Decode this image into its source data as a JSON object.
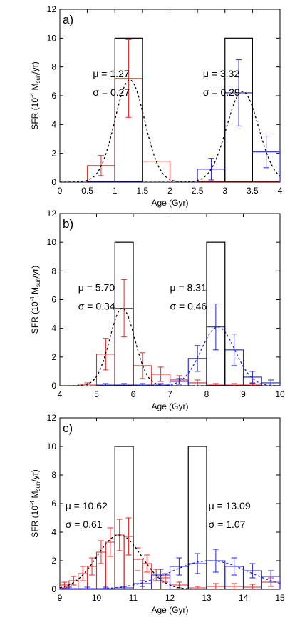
{
  "chart_data": [
    {
      "panel_label": "a)",
      "type": "bar",
      "xlabel": "Age (Gyr)",
      "ylabel_main": "SFR (10",
      "ylabel_exp": "-4",
      "ylabel_unit": " M",
      "ylabel_sub": "sun",
      "ylabel_tail": "/yr)",
      "xlim": [
        0,
        4
      ],
      "ylim": [
        0,
        12
      ],
      "xticks": [
        0,
        0.5,
        1,
        1.5,
        2,
        2.5,
        3,
        3.5,
        4
      ],
      "xtick_labels": [
        "0",
        "0.5",
        "1",
        "1.5",
        "2",
        "2.5",
        "3",
        "3.5",
        "4"
      ],
      "yticks": [
        0,
        2,
        4,
        6,
        8,
        10,
        12
      ],
      "ytick_labels": [
        "0",
        "2",
        "4",
        "6",
        "8",
        "10",
        "12"
      ],
      "input_boxes": [
        {
          "x0": 1.0,
          "x1": 1.5,
          "height": 10
        },
        {
          "x0": 3.0,
          "x1": 3.5,
          "height": 10
        }
      ],
      "series": [
        {
          "color": "#e8262a",
          "bins": [
            {
              "x0": 0.0,
              "x1": 0.5,
              "value": 0.0,
              "err": 0.0
            },
            {
              "x0": 0.5,
              "x1": 1.0,
              "value": 1.15,
              "err": 0.7
            },
            {
              "x0": 1.0,
              "x1": 1.5,
              "value": 7.2,
              "err": 2.7
            },
            {
              "x0": 1.5,
              "x1": 2.0,
              "value": 1.45,
              "err": 0.0
            },
            {
              "x0": 2.0,
              "x1": 2.5,
              "value": 0.0,
              "err": 0.0
            },
            {
              "x0": 2.5,
              "x1": 3.0,
              "value": 0.05,
              "err": 0.0
            },
            {
              "x0": 3.0,
              "x1": 3.5,
              "value": 0.05,
              "err": 0.0
            },
            {
              "x0": 3.5,
              "x1": 4.0,
              "value": 0.05,
              "err": 0.0
            }
          ],
          "fit": {
            "mu": 1.27,
            "sigma": 0.27,
            "amp": 7.1
          }
        },
        {
          "color": "#2323d6",
          "bins": [
            {
              "x0": 0.0,
              "x1": 0.5,
              "value": 0.0,
              "err": 0.0
            },
            {
              "x0": 0.5,
              "x1": 1.0,
              "value": 0.05,
              "err": 0.0
            },
            {
              "x0": 1.0,
              "x1": 1.5,
              "value": 0.05,
              "err": 0.0
            },
            {
              "x0": 1.5,
              "x1": 2.0,
              "value": 0.0,
              "err": 0.0
            },
            {
              "x0": 2.0,
              "x1": 2.5,
              "value": 0.0,
              "err": 0.0
            },
            {
              "x0": 2.5,
              "x1": 3.0,
              "value": 0.9,
              "err": 0.75
            },
            {
              "x0": 3.0,
              "x1": 3.5,
              "value": 6.2,
              "err": 2.3
            },
            {
              "x0": 3.5,
              "x1": 4.0,
              "value": 2.1,
              "err": 1.1
            }
          ],
          "fit": {
            "mu": 3.32,
            "sigma": 0.29,
            "amp": 6.3
          }
        }
      ],
      "annotations": [
        {
          "text": "μ = 1.27",
          "x": 0.6,
          "y": 7.3
        },
        {
          "text": "σ = 0.27",
          "x": 0.6,
          "y": 6.0
        },
        {
          "text": "μ = 3.32",
          "x": 2.6,
          "y": 7.3
        },
        {
          "text": "σ = 0.29",
          "x": 2.6,
          "y": 6.0
        }
      ]
    },
    {
      "panel_label": "b)",
      "type": "bar",
      "xlabel": "Age (Gyr)",
      "ylabel_main": "SFR (10",
      "ylabel_exp": "-4",
      "ylabel_unit": " M",
      "ylabel_sub": "sun",
      "ylabel_tail": "/yr)",
      "xlim": [
        4,
        10
      ],
      "ylim": [
        0,
        12
      ],
      "xticks": [
        4,
        5,
        6,
        7,
        8,
        9,
        10
      ],
      "xtick_labels": [
        "4",
        "5",
        "6",
        "7",
        "8",
        "9",
        "10"
      ],
      "yticks": [
        0,
        2,
        4,
        6,
        8,
        10,
        12
      ],
      "ytick_labels": [
        "0",
        "2",
        "4",
        "6",
        "8",
        "10",
        "12"
      ],
      "input_boxes": [
        {
          "x0": 5.5,
          "x1": 6.0,
          "height": 10
        },
        {
          "x0": 8.0,
          "x1": 8.5,
          "height": 10
        }
      ],
      "series": [
        {
          "color": "#e8262a",
          "bins": [
            {
              "x0": 4.5,
              "x1": 5.0,
              "value": 0.1,
              "err": 0.1
            },
            {
              "x0": 5.0,
              "x1": 5.5,
              "value": 2.2,
              "err": 1.1
            },
            {
              "x0": 5.5,
              "x1": 6.0,
              "value": 5.4,
              "err": 2.0
            },
            {
              "x0": 6.0,
              "x1": 6.5,
              "value": 1.4,
              "err": 0.9
            },
            {
              "x0": 6.5,
              "x1": 7.0,
              "value": 0.8,
              "err": 0.5
            },
            {
              "x0": 7.0,
              "x1": 7.5,
              "value": 0.4,
              "err": 0.3
            },
            {
              "x0": 7.5,
              "x1": 8.0,
              "value": 0.2,
              "err": 0.2
            },
            {
              "x0": 8.0,
              "x1": 8.5,
              "value": 0.05,
              "err": 0.1
            },
            {
              "x0": 8.5,
              "x1": 9.0,
              "value": 0.05,
              "err": 0.1
            },
            {
              "x0": 9.0,
              "x1": 9.5,
              "value": 0.05,
              "err": 0.1
            }
          ],
          "fit": {
            "mu": 5.7,
            "sigma": 0.34,
            "amp": 5.4
          }
        },
        {
          "color": "#2323d6",
          "bins": [
            {
              "x0": 5.0,
              "x1": 5.5,
              "value": 0.05,
              "err": 0.1
            },
            {
              "x0": 5.5,
              "x1": 6.0,
              "value": 0.05,
              "err": 0.1
            },
            {
              "x0": 6.0,
              "x1": 6.5,
              "value": 0.05,
              "err": 0.1
            },
            {
              "x0": 6.5,
              "x1": 7.0,
              "value": 0.05,
              "err": 0.1
            },
            {
              "x0": 7.0,
              "x1": 7.5,
              "value": 0.3,
              "err": 0.2
            },
            {
              "x0": 7.5,
              "x1": 8.0,
              "value": 1.9,
              "err": 0.9
            },
            {
              "x0": 8.0,
              "x1": 8.5,
              "value": 4.1,
              "err": 1.6
            },
            {
              "x0": 8.5,
              "x1": 9.0,
              "value": 2.5,
              "err": 1.1
            },
            {
              "x0": 9.0,
              "x1": 9.5,
              "value": 0.6,
              "err": 0.4
            },
            {
              "x0": 9.5,
              "x1": 10.0,
              "value": 0.2,
              "err": 0.2
            }
          ],
          "fit": {
            "mu": 8.31,
            "sigma": 0.46,
            "amp": 4.1
          }
        }
      ],
      "annotations": [
        {
          "text": "μ = 5.70",
          "x": 4.5,
          "y": 6.6
        },
        {
          "text": "σ = 0.34",
          "x": 4.5,
          "y": 5.3
        },
        {
          "text": "μ = 8.31",
          "x": 7.0,
          "y": 6.6
        },
        {
          "text": "σ = 0.46",
          "x": 7.0,
          "y": 5.3
        }
      ]
    },
    {
      "panel_label": "c)",
      "type": "bar",
      "xlabel": "Age (Gyr)",
      "ylabel_main": "SFR (10",
      "ylabel_exp": "-4",
      "ylabel_unit": " M",
      "ylabel_sub": "sun",
      "ylabel_tail": "/yr)",
      "xlim": [
        9,
        15
      ],
      "ylim": [
        0,
        12
      ],
      "xticks": [
        9,
        10,
        11,
        12,
        13,
        14,
        15
      ],
      "xtick_labels": [
        "9",
        "10",
        "11",
        "12",
        "13",
        "14",
        "15"
      ],
      "yticks": [
        0,
        2,
        4,
        6,
        8,
        10,
        12
      ],
      "ytick_labels": [
        "0",
        "2",
        "4",
        "6",
        "8",
        "10",
        "12"
      ],
      "input_boxes": [
        {
          "x0": 10.5,
          "x1": 11.0,
          "height": 10
        },
        {
          "x0": 12.5,
          "x1": 13.0,
          "height": 10
        }
      ],
      "series": [
        {
          "color": "#e8262a",
          "bins": [
            {
              "x0": 9.0,
              "x1": 9.25,
              "value": 0.3,
              "err": 0.2
            },
            {
              "x0": 9.25,
              "x1": 9.5,
              "value": 0.6,
              "err": 0.3
            },
            {
              "x0": 9.5,
              "x1": 9.75,
              "value": 1.1,
              "err": 0.5
            },
            {
              "x0": 9.75,
              "x1": 10.0,
              "value": 1.6,
              "err": 0.6
            },
            {
              "x0": 10.0,
              "x1": 10.25,
              "value": 2.6,
              "err": 0.8
            },
            {
              "x0": 10.25,
              "x1": 10.5,
              "value": 3.3,
              "err": 1.0
            },
            {
              "x0": 10.5,
              "x1": 10.75,
              "value": 3.8,
              "err": 1.1
            },
            {
              "x0": 10.75,
              "x1": 11.0,
              "value": 3.7,
              "err": 1.3
            },
            {
              "x0": 11.0,
              "x1": 11.25,
              "value": 2.1,
              "err": 0.8
            },
            {
              "x0": 11.25,
              "x1": 11.5,
              "value": 1.8,
              "err": 0.6
            },
            {
              "x0": 11.5,
              "x1": 11.75,
              "value": 1.0,
              "err": 0.4
            },
            {
              "x0": 11.75,
              "x1": 12.0,
              "value": 0.8,
              "err": 0.3
            },
            {
              "x0": 12.0,
              "x1": 12.5,
              "value": 0.3,
              "err": 0.2
            },
            {
              "x0": 12.5,
              "x1": 13.0,
              "value": 0.1,
              "err": 0.1
            },
            {
              "x0": 13.0,
              "x1": 13.5,
              "value": 0.2,
              "err": 0.2
            },
            {
              "x0": 13.5,
              "x1": 14.0,
              "value": 0.2,
              "err": 0.2
            },
            {
              "x0": 14.0,
              "x1": 14.5,
              "value": 0.15,
              "err": 0.2
            },
            {
              "x0": 14.5,
              "x1": 15.0,
              "value": 0.5,
              "err": 0.3
            }
          ],
          "fit": {
            "mu": 10.62,
            "sigma": 0.61,
            "amp": 3.8
          }
        },
        {
          "color": "#2323d6",
          "bins": [
            {
              "x0": 9.0,
              "x1": 9.5,
              "value": 0.05,
              "err": 0.1
            },
            {
              "x0": 9.5,
              "x1": 10.0,
              "value": 0.05,
              "err": 0.1
            },
            {
              "x0": 10.0,
              "x1": 10.5,
              "value": 0.05,
              "err": 0.1
            },
            {
              "x0": 10.5,
              "x1": 11.0,
              "value": 0.1,
              "err": 0.1
            },
            {
              "x0": 11.0,
              "x1": 11.5,
              "value": 0.4,
              "err": 0.2
            },
            {
              "x0": 11.5,
              "x1": 12.0,
              "value": 1.0,
              "err": 0.4
            },
            {
              "x0": 12.0,
              "x1": 12.5,
              "value": 1.6,
              "err": 0.6
            },
            {
              "x0": 12.5,
              "x1": 13.0,
              "value": 1.8,
              "err": 0.7
            },
            {
              "x0": 13.0,
              "x1": 13.5,
              "value": 2.0,
              "err": 0.8
            },
            {
              "x0": 13.5,
              "x1": 14.0,
              "value": 1.6,
              "err": 0.6
            },
            {
              "x0": 14.0,
              "x1": 14.5,
              "value": 1.3,
              "err": 0.5
            },
            {
              "x0": 14.5,
              "x1": 15.0,
              "value": 0.9,
              "err": 0.4
            }
          ],
          "fit": {
            "mu": 13.09,
            "sigma": 1.07,
            "amp": 2.0
          }
        }
      ],
      "annotations": [
        {
          "text": "μ = 10.62",
          "x": 9.15,
          "y": 5.6
        },
        {
          "text": "σ = 0.61",
          "x": 9.15,
          "y": 4.3
        },
        {
          "text": "μ = 13.09",
          "x": 13.05,
          "y": 5.6
        },
        {
          "text": "σ = 1.07",
          "x": 13.05,
          "y": 4.3
        }
      ]
    }
  ]
}
